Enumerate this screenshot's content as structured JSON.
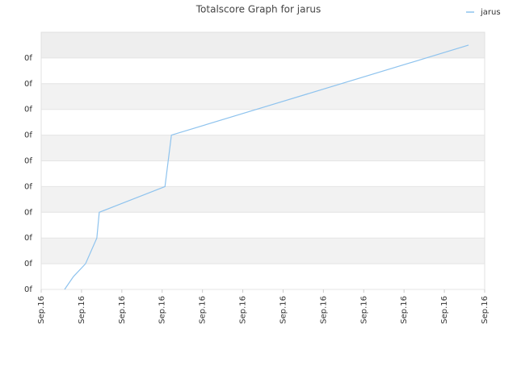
{
  "chart_data": {
    "type": "line",
    "title": "Totalscore Graph for jarus",
    "x": [
      0.58,
      0.8,
      1.1,
      1.38,
      1.44,
      3.07,
      3.23,
      10.6
    ],
    "series": [
      {
        "name": "jarus",
        "color": "#8ec3ee",
        "values": [
          0,
          0.5,
          1,
          2,
          3,
          4,
          6,
          9.5
        ]
      }
    ],
    "xlim": [
      0,
      11
    ],
    "xticks": [
      {
        "value": 0,
        "label": "Sep.16"
      },
      {
        "value": 1,
        "label": "Sep.16"
      },
      {
        "value": 2,
        "label": "Sep.16"
      },
      {
        "value": 3,
        "label": "Sep.16"
      },
      {
        "value": 4,
        "label": "Sep.16"
      },
      {
        "value": 5,
        "label": "Sep.16"
      },
      {
        "value": 6,
        "label": "Sep.16"
      },
      {
        "value": 7,
        "label": "Sep.16"
      },
      {
        "value": 8,
        "label": "Sep.16"
      },
      {
        "value": 9,
        "label": "Sep.16"
      },
      {
        "value": 10,
        "label": "Sep.16"
      },
      {
        "value": 11,
        "label": "Sep.16"
      }
    ],
    "ylim": [
      0,
      10
    ],
    "yticks": [
      {
        "value": 0,
        "label": "0f"
      },
      {
        "value": 1,
        "label": "0f"
      },
      {
        "value": 2,
        "label": "0f"
      },
      {
        "value": 3,
        "label": "0f"
      },
      {
        "value": 4,
        "label": "0f"
      },
      {
        "value": 5,
        "label": "0f"
      },
      {
        "value": 6,
        "label": "0f"
      },
      {
        "value": 7,
        "label": "0f"
      },
      {
        "value": 8,
        "label": "0f"
      },
      {
        "value": 9,
        "label": "0f"
      }
    ],
    "grid": true,
    "legend": "top-right"
  }
}
